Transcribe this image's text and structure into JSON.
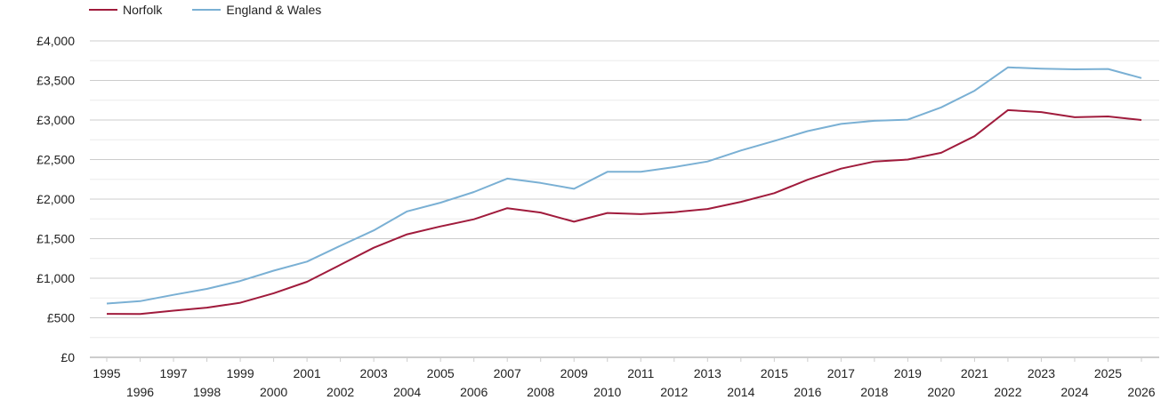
{
  "chart_data": {
    "type": "line",
    "title": "",
    "xlabel": "",
    "ylabel": "",
    "ylim": [
      0,
      4000
    ],
    "yticks": [
      "£0",
      "£500",
      "£1,000",
      "£1,500",
      "£2,000",
      "£2,500",
      "£3,000",
      "£3,500",
      "£4,000"
    ],
    "ytick_values": [
      0,
      500,
      1000,
      1500,
      2000,
      2500,
      3000,
      3500,
      4000
    ],
    "x": [
      1995,
      1996,
      1997,
      1998,
      1999,
      2000,
      2001,
      2002,
      2003,
      2004,
      2005,
      2006,
      2007,
      2008,
      2009,
      2010,
      2011,
      2012,
      2013,
      2014,
      2015,
      2016,
      2017,
      2018,
      2019,
      2020,
      2021,
      2022,
      2023,
      2024,
      2025,
      2026
    ],
    "grid": true,
    "legend_position": "top-left",
    "series": [
      {
        "name": "Norfolk",
        "color": "#a01b3c",
        "values": [
          550,
          548,
          590,
          628,
          690,
          810,
          955,
          1170,
          1385,
          1555,
          1655,
          1745,
          1885,
          1830,
          1715,
          1825,
          1810,
          1835,
          1875,
          1965,
          2075,
          2245,
          2385,
          2475,
          2500,
          2585,
          2795,
          3125,
          3100,
          3035,
          3045,
          3000
        ]
      },
      {
        "name": "England & Wales",
        "color": "#7ab0d4",
        "values": [
          680,
          710,
          790,
          865,
          965,
          1095,
          1210,
          1410,
          1605,
          1845,
          1955,
          2090,
          2260,
          2205,
          2130,
          2345,
          2345,
          2405,
          2475,
          2615,
          2735,
          2860,
          2950,
          2990,
          3005,
          3160,
          3370,
          3665,
          3650,
          3640,
          3645,
          3530
        ]
      }
    ]
  }
}
